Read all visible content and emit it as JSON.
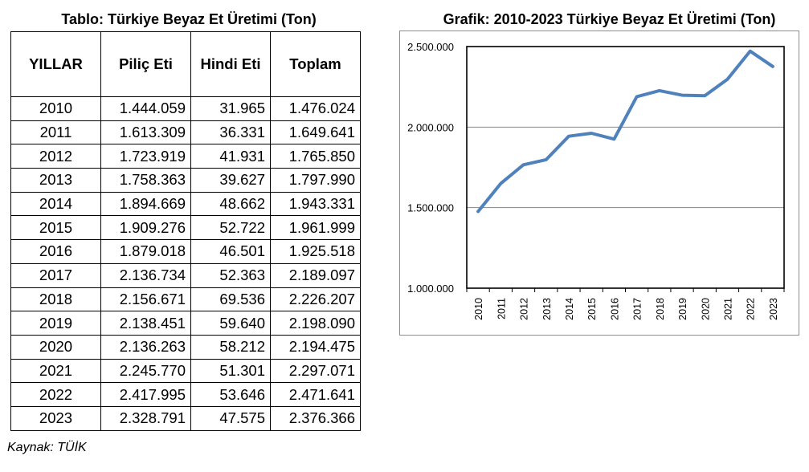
{
  "table": {
    "title": "Tablo: Türkiye Beyaz Et Üretimi (Ton)",
    "headers": [
      "YILLAR",
      "Piliç Eti",
      "Hindi Eti",
      "Toplam"
    ],
    "rows": [
      [
        "2010",
        "1.444.059",
        "31.965",
        "1.476.024"
      ],
      [
        "2011",
        "1.613.309",
        "36.331",
        "1.649.641"
      ],
      [
        "2012",
        "1.723.919",
        "41.931",
        "1.765.850"
      ],
      [
        "2013",
        "1.758.363",
        "39.627",
        "1.797.990"
      ],
      [
        "2014",
        "1.894.669",
        "48.662",
        "1.943.331"
      ],
      [
        "2015",
        "1.909.276",
        "52.722",
        "1.961.999"
      ],
      [
        "2016",
        "1.879.018",
        "46.501",
        "1.925.518"
      ],
      [
        "2017",
        "2.136.734",
        "52.363",
        "2.189.097"
      ],
      [
        "2018",
        "2.156.671",
        "69.536",
        "2.226.207"
      ],
      [
        "2019",
        "2.138.451",
        "59.640",
        "2.198.090"
      ],
      [
        "2020",
        "2.136.263",
        "58.212",
        "2.194.475"
      ],
      [
        "2021",
        "2.245.770",
        "51.301",
        "2.297.071"
      ],
      [
        "2022",
        "2.417.995",
        "53.646",
        "2.471.641"
      ],
      [
        "2023",
        "2.328.791",
        "47.575",
        "2.376.366"
      ]
    ]
  },
  "source": "Kaynak: TÜİK",
  "chart_data": {
    "type": "line",
    "title": "Grafik: 2010-2023 Türkiye Beyaz Et Üretimi (Ton)",
    "xlabel": "",
    "ylabel": "",
    "categories": [
      "2010",
      "2011",
      "2012",
      "2013",
      "2014",
      "2015",
      "2016",
      "2017",
      "2018",
      "2019",
      "2020",
      "2021",
      "2022",
      "2023"
    ],
    "series": [
      {
        "values": [
          1476024,
          1649641,
          1765850,
          1797990,
          1943331,
          1961999,
          1925518,
          2189097,
          2226207,
          2198090,
          2194475,
          2297071,
          2471641,
          2376366
        ]
      }
    ],
    "ylim": [
      1000000,
      2500000
    ],
    "yticks": [
      1000000,
      1500000,
      2000000,
      2500000
    ],
    "ytick_labels": [
      "1.000.000",
      "1.500.000",
      "2.000.000",
      "2.500.000"
    ],
    "grid": true,
    "legend": "none",
    "line_color": "#4f81bd"
  }
}
